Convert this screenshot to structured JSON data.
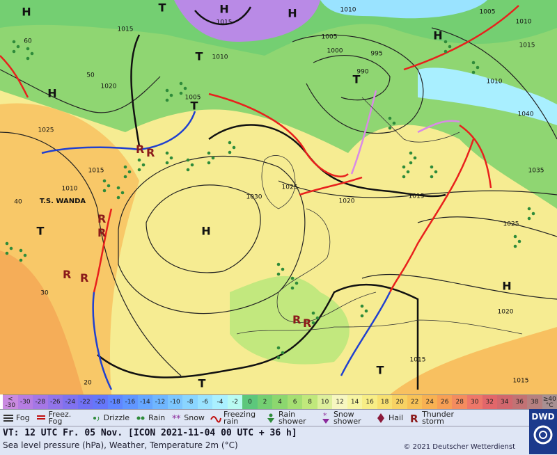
{
  "map": {
    "labels": [
      "H",
      "T",
      "H",
      "H",
      "1015",
      "1015",
      "1010",
      "1005",
      "1010",
      "H",
      "T",
      "1010",
      "1005",
      "1000",
      "995",
      "990",
      "T",
      "1020",
      "H",
      "1010",
      "1015",
      "1040",
      "1025",
      "T",
      "1005",
      "1015",
      "1010",
      "T.S. WANDA",
      "1025",
      "1030",
      "1020",
      "1015",
      "1035",
      "1025",
      "H",
      "T",
      "H",
      "1020",
      "1015",
      "1015",
      "T",
      "T",
      "40",
      "30",
      "20",
      "50",
      "60"
    ]
  },
  "temperature_scale": {
    "items": [
      {
        "label": "< -30",
        "color": "#c98ae0"
      },
      {
        "label": "-30",
        "color": "#b77de3"
      },
      {
        "label": "-28",
        "color": "#a577e6"
      },
      {
        "label": "-26",
        "color": "#9274ea"
      },
      {
        "label": "-24",
        "color": "#8072ef"
      },
      {
        "label": "-22",
        "color": "#7070f4"
      },
      {
        "label": "-20",
        "color": "#6577fa"
      },
      {
        "label": "-18",
        "color": "#5f86ff"
      },
      {
        "label": "-16",
        "color": "#6096ff"
      },
      {
        "label": "-14",
        "color": "#65a6ff"
      },
      {
        "label": "-12",
        "color": "#6fb6ff"
      },
      {
        "label": "-10",
        "color": "#7cc6ff"
      },
      {
        "label": "-8",
        "color": "#8ad5ff"
      },
      {
        "label": "-6",
        "color": "#9ae3ff"
      },
      {
        "label": "-4",
        "color": "#aaf0ff"
      },
      {
        "label": "-2",
        "color": "#b9fbf2"
      },
      {
        "label": "0",
        "color": "#5dc77c"
      },
      {
        "label": "2",
        "color": "#74cf72"
      },
      {
        "label": "4",
        "color": "#8cd76f"
      },
      {
        "label": "6",
        "color": "#a5df72"
      },
      {
        "label": "8",
        "color": "#c0e87c"
      },
      {
        "label": "10",
        "color": "#def09c"
      },
      {
        "label": "12",
        "color": "#f7f7c0"
      },
      {
        "label": "14",
        "color": "#f7f5a2"
      },
      {
        "label": "16",
        "color": "#f8ee86"
      },
      {
        "label": "18",
        "color": "#f8e171"
      },
      {
        "label": "20",
        "color": "#f8d263"
      },
      {
        "label": "22",
        "color": "#f8c257"
      },
      {
        "label": "24",
        "color": "#f8b152"
      },
      {
        "label": "26",
        "color": "#f89f55"
      },
      {
        "label": "28",
        "color": "#f48c5f"
      },
      {
        "label": "30",
        "color": "#ee7769"
      },
      {
        "label": "32",
        "color": "#e2676a"
      },
      {
        "label": "34",
        "color": "#d2676d"
      },
      {
        "label": "36",
        "color": "#c27274"
      },
      {
        "label": "38",
        "color": "#b58080"
      },
      {
        "label": "≥40 °C",
        "color": "#a89092"
      }
    ]
  },
  "legend": {
    "items": [
      "Fog",
      "Freez. Fog",
      "Drizzle",
      "Rain",
      "Snow",
      "Freezing rain",
      "Rain shower",
      "Snow shower",
      "Hail",
      "Thunder storm"
    ]
  },
  "footer": {
    "valid_time": "VT: 12 UTC Fr.  05 Nov. [ICON 2021-11-04  00 UTC + 36 h]",
    "description": "Sea level pressure (hPa), Weather, Temperature 2m (°C)",
    "copyright": "© 2021 Deutscher Wetterdienst",
    "logo": "DWD"
  }
}
